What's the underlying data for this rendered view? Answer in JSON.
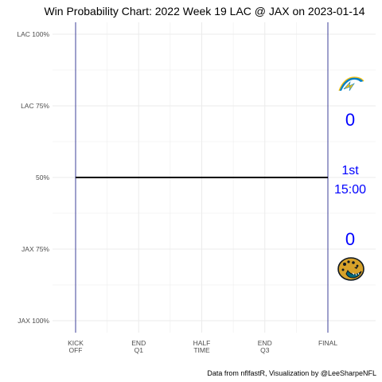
{
  "chart_data": {
    "type": "line",
    "title": "Win Probability Chart: 2022 Week 19 LAC @ JAX on 2023-01-14",
    "caption": "Data from nflfastR, Visualization by @LeeSharpeNFL",
    "y_tick_labels": [
      "LAC 100%",
      "LAC 75%",
      "50%",
      "JAX 75%",
      "JAX 100%"
    ],
    "y_tick_values": [
      1.0,
      0.75,
      0.5,
      0.25,
      0.0
    ],
    "ylim": [
      0,
      1
    ],
    "x_ticks": [
      {
        "line1": "KICK",
        "line2": "OFF",
        "value": 0
      },
      {
        "line1": "END",
        "line2": "Q1",
        "value": 0.25
      },
      {
        "line1": "HALF",
        "line2": "TIME",
        "value": 0.5
      },
      {
        "line1": "END",
        "line2": "Q3",
        "value": 0.75
      },
      {
        "line1": "FINAL",
        "line2": "",
        "value": 1.0
      }
    ],
    "xlim": [
      0,
      1
    ],
    "series": [
      {
        "x": [
          0,
          1
        ],
        "y": [
          0.5,
          0.5
        ],
        "color": "#000000"
      }
    ],
    "grid": true,
    "colors": {
      "accent": "#0000ff",
      "boundary": "#2b2d8f",
      "grid": "#ebebeb"
    }
  },
  "overlay": {
    "away_team": "LAC",
    "home_team": "JAX",
    "away_score": "0",
    "home_score": "0",
    "quarter": "1st",
    "clock": "15:00",
    "away_logo_icon": "chargers-bolt-logo",
    "home_logo_icon": "jaguars-head-logo"
  }
}
